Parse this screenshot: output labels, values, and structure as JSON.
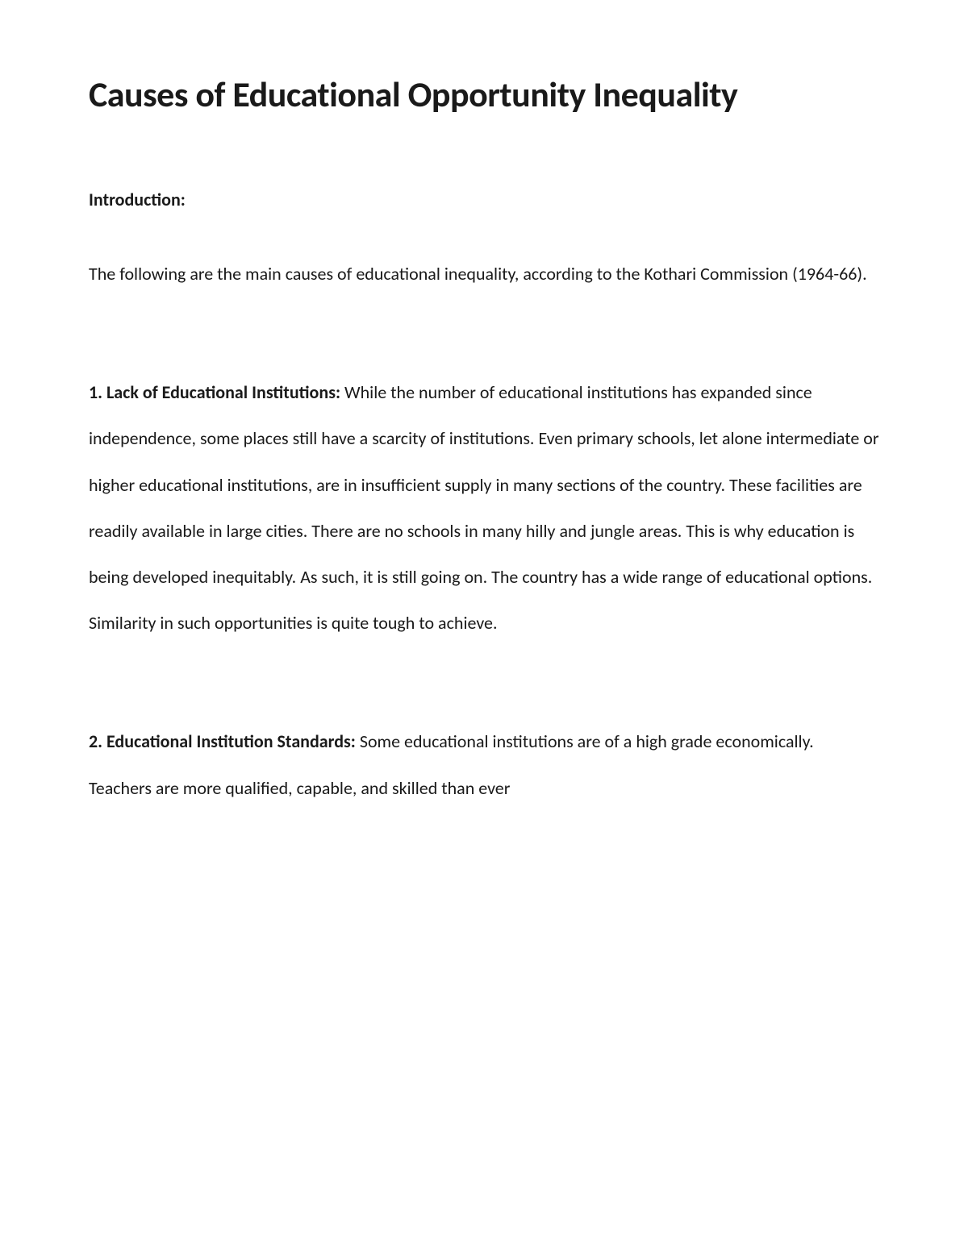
{
  "title": "Causes of Educational Opportunity Inequality",
  "intro": {
    "heading": "Introduction:",
    "text": "The following are the main causes of educational inequality, according to the Kothari Commission (1964-66)."
  },
  "points": [
    {
      "label": "1. Lack of Educational Institutions:",
      "body": " While the number of educational institutions has expanded since independence, some places still have a scarcity of institutions. Even primary schools, let alone intermediate or higher educational institutions, are in insufficient supply in many sections of the country. These facilities are readily available in large cities. There are no schools in many hilly and jungle areas. This is why education is being developed inequitably. As such, it is still going on. The country has a wide range of educational options. Similarity in such opportunities is quite tough to achieve."
    },
    {
      "label": "2. Educational Institution Standards:",
      "body": " Some educational institutions are of a high grade economically. Teachers are more qualified, capable, and skilled than ever"
    }
  ],
  "style": {
    "background_color": "#ffffff",
    "text_color": "#1a1a1a",
    "title_fontsize": 44,
    "body_fontsize": 22,
    "line_height": 2.6,
    "font_family": "Calibri"
  }
}
